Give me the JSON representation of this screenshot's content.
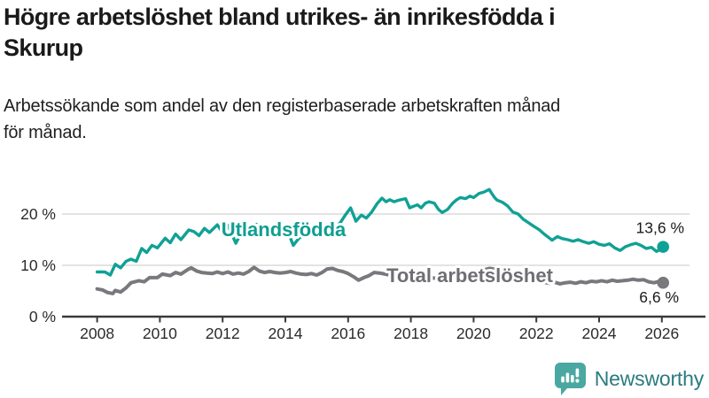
{
  "header": {
    "title_line1": "Högre arbetslöshet bland utrikes- än inrikesfödda i",
    "title_line2": "Skurup",
    "subtitle_line1": "Arbetssökande som andel av den registerbaserade arbetskraften månad",
    "subtitle_line2": "för månad."
  },
  "brand": {
    "name": "Newsworthy",
    "icon": "bar-chart-speech-bubble-icon",
    "icon_color": "#4ba7a2",
    "text_color": "#2b7b80"
  },
  "chart_data": {
    "type": "line",
    "title": "Högre arbetslöshet bland utrikes- än inrikesfödda i Skurup",
    "subtitle": "Arbetssökande som andel av den registerbaserade arbetskraften månad för månad.",
    "xlim": [
      2007.9,
      2026.4
    ],
    "ylim": [
      0,
      26
    ],
    "grid": "horizontal",
    "x_ticks": [
      2008,
      2010,
      2012,
      2014,
      2016,
      2018,
      2020,
      2022,
      2024,
      2026
    ],
    "y_ticks": [
      {
        "value": 0,
        "label": "0 %"
      },
      {
        "value": 10,
        "label": "10 %"
      },
      {
        "value": 20,
        "label": "20 %"
      }
    ],
    "colors": {
      "accent_teal": "#10a195",
      "neutral_gray": "#78787d",
      "gridline": "#dadada",
      "axis": "#3a3a3a"
    },
    "series": [
      {
        "id": "utlandsfodda",
        "name": "Utlandsfödda",
        "color": "#10a195",
        "label_color": "#0f9e92",
        "end_label": "13,6 %",
        "end_value": 13.6,
        "points": [
          [
            2008.0,
            8.7
          ],
          [
            2008.25,
            8.7
          ],
          [
            2008.42,
            8.1
          ],
          [
            2008.58,
            10.2
          ],
          [
            2008.75,
            9.5
          ],
          [
            2008.92,
            10.8
          ],
          [
            2009.08,
            11.2
          ],
          [
            2009.25,
            10.8
          ],
          [
            2009.42,
            13.3
          ],
          [
            2009.58,
            12.5
          ],
          [
            2009.75,
            13.9
          ],
          [
            2009.92,
            13.4
          ],
          [
            2010.08,
            14.6
          ],
          [
            2010.17,
            15.3
          ],
          [
            2010.33,
            14.4
          ],
          [
            2010.5,
            16.1
          ],
          [
            2010.67,
            15.0
          ],
          [
            2010.92,
            16.9
          ],
          [
            2011.08,
            16.6
          ],
          [
            2011.25,
            15.8
          ],
          [
            2011.42,
            17.2
          ],
          [
            2011.58,
            16.4
          ],
          [
            2011.83,
            17.9
          ],
          [
            2012.0,
            16.4
          ],
          [
            2012.17,
            17.8
          ],
          [
            2012.42,
            14.3
          ],
          [
            2012.58,
            16.2
          ],
          [
            2012.75,
            17.0
          ],
          [
            2012.92,
            17.5
          ],
          [
            2013.08,
            18.0
          ],
          [
            2013.25,
            17.3
          ],
          [
            2013.42,
            16.6
          ],
          [
            2013.58,
            16.1
          ],
          [
            2013.75,
            16.8
          ],
          [
            2013.92,
            16.3
          ],
          [
            2014.08,
            16.6
          ],
          [
            2014.25,
            13.9
          ],
          [
            2014.42,
            15.2
          ],
          [
            2014.58,
            15.9
          ],
          [
            2014.75,
            16.5
          ],
          [
            2014.92,
            16.2
          ],
          [
            2015.08,
            17.3
          ],
          [
            2015.25,
            16.3
          ],
          [
            2015.42,
            16.9
          ],
          [
            2015.58,
            17.4
          ],
          [
            2015.75,
            18.3
          ],
          [
            2015.92,
            19.9
          ],
          [
            2016.08,
            21.2
          ],
          [
            2016.25,
            18.6
          ],
          [
            2016.42,
            19.8
          ],
          [
            2016.58,
            19.2
          ],
          [
            2016.75,
            20.4
          ],
          [
            2016.92,
            22.0
          ],
          [
            2017.08,
            23.1
          ],
          [
            2017.21,
            22.4
          ],
          [
            2017.33,
            22.8
          ],
          [
            2017.46,
            22.4
          ],
          [
            2017.62,
            22.7
          ],
          [
            2017.83,
            23.0
          ],
          [
            2017.96,
            21.2
          ],
          [
            2018.08,
            21.5
          ],
          [
            2018.21,
            21.8
          ],
          [
            2018.33,
            21.2
          ],
          [
            2018.46,
            22.1
          ],
          [
            2018.58,
            22.4
          ],
          [
            2018.75,
            22.1
          ],
          [
            2018.88,
            20.9
          ],
          [
            2019.0,
            20.3
          ],
          [
            2019.17,
            20.9
          ],
          [
            2019.33,
            22.1
          ],
          [
            2019.46,
            22.8
          ],
          [
            2019.58,
            23.2
          ],
          [
            2019.75,
            23.0
          ],
          [
            2019.88,
            23.5
          ],
          [
            2020.0,
            23.2
          ],
          [
            2020.17,
            24.0
          ],
          [
            2020.33,
            24.3
          ],
          [
            2020.5,
            24.8
          ],
          [
            2020.58,
            24.0
          ],
          [
            2020.67,
            23.2
          ],
          [
            2020.75,
            22.7
          ],
          [
            2020.92,
            22.3
          ],
          [
            2021.08,
            21.6
          ],
          [
            2021.25,
            20.4
          ],
          [
            2021.42,
            20.0
          ],
          [
            2021.58,
            19.0
          ],
          [
            2021.75,
            18.3
          ],
          [
            2021.92,
            17.6
          ],
          [
            2022.08,
            17.0
          ],
          [
            2022.25,
            16.1
          ],
          [
            2022.42,
            15.3
          ],
          [
            2022.5,
            14.9
          ],
          [
            2022.67,
            15.6
          ],
          [
            2022.83,
            15.2
          ],
          [
            2023.0,
            15.0
          ],
          [
            2023.17,
            14.7
          ],
          [
            2023.33,
            15.0
          ],
          [
            2023.5,
            14.6
          ],
          [
            2023.67,
            14.3
          ],
          [
            2023.83,
            14.6
          ],
          [
            2024.0,
            14.1
          ],
          [
            2024.17,
            13.9
          ],
          [
            2024.33,
            14.2
          ],
          [
            2024.5,
            13.4
          ],
          [
            2024.67,
            12.9
          ],
          [
            2024.83,
            13.6
          ],
          [
            2025.0,
            14.0
          ],
          [
            2025.17,
            14.3
          ],
          [
            2025.33,
            13.9
          ],
          [
            2025.5,
            13.3
          ],
          [
            2025.67,
            13.5
          ],
          [
            2025.83,
            12.7
          ],
          [
            2025.92,
            13.0
          ],
          [
            2026.04,
            13.6
          ]
        ]
      },
      {
        "id": "total-arbetsloshet",
        "name": "Total arbetslöshet",
        "color": "#78787d",
        "label_color": "#6e6e73",
        "end_label": "6,6 %",
        "end_value": 6.6,
        "points": [
          [
            2008.0,
            5.4
          ],
          [
            2008.17,
            5.2
          ],
          [
            2008.33,
            4.7
          ],
          [
            2008.5,
            4.5
          ],
          [
            2008.58,
            5.1
          ],
          [
            2008.75,
            4.8
          ],
          [
            2008.92,
            5.6
          ],
          [
            2009.08,
            6.6
          ],
          [
            2009.33,
            7.0
          ],
          [
            2009.5,
            6.8
          ],
          [
            2009.67,
            7.6
          ],
          [
            2009.92,
            7.6
          ],
          [
            2010.08,
            8.3
          ],
          [
            2010.33,
            8.0
          ],
          [
            2010.5,
            8.6
          ],
          [
            2010.67,
            8.3
          ],
          [
            2010.92,
            9.3
          ],
          [
            2011.0,
            9.5
          ],
          [
            2011.17,
            8.9
          ],
          [
            2011.33,
            8.6
          ],
          [
            2011.5,
            8.5
          ],
          [
            2011.67,
            8.4
          ],
          [
            2011.83,
            8.7
          ],
          [
            2012.0,
            8.4
          ],
          [
            2012.17,
            8.7
          ],
          [
            2012.33,
            8.3
          ],
          [
            2012.5,
            8.5
          ],
          [
            2012.67,
            8.3
          ],
          [
            2012.83,
            8.8
          ],
          [
            2013.0,
            9.6
          ],
          [
            2013.17,
            8.9
          ],
          [
            2013.33,
            8.6
          ],
          [
            2013.5,
            8.8
          ],
          [
            2013.67,
            8.6
          ],
          [
            2013.83,
            8.5
          ],
          [
            2014.0,
            8.6
          ],
          [
            2014.17,
            8.8
          ],
          [
            2014.33,
            8.5
          ],
          [
            2014.5,
            8.3
          ],
          [
            2014.67,
            8.2
          ],
          [
            2014.83,
            8.4
          ],
          [
            2015.0,
            8.1
          ],
          [
            2015.17,
            8.6
          ],
          [
            2015.33,
            9.3
          ],
          [
            2015.5,
            9.4
          ],
          [
            2015.67,
            9.0
          ],
          [
            2015.83,
            8.8
          ],
          [
            2016.0,
            8.4
          ],
          [
            2016.17,
            7.8
          ],
          [
            2016.33,
            7.1
          ],
          [
            2016.5,
            7.6
          ],
          [
            2016.67,
            8.0
          ],
          [
            2016.83,
            8.6
          ],
          [
            2017.0,
            8.5
          ],
          [
            2017.25,
            8.2
          ],
          [
            2017.5,
            8.0
          ],
          [
            2017.75,
            7.7
          ],
          [
            2018.0,
            7.6
          ],
          [
            2018.25,
            7.9
          ],
          [
            2018.5,
            7.7
          ],
          [
            2018.75,
            7.5
          ],
          [
            2019.0,
            7.4
          ],
          [
            2019.25,
            7.6
          ],
          [
            2019.5,
            7.7
          ],
          [
            2019.75,
            7.9
          ],
          [
            2020.0,
            8.2
          ],
          [
            2020.25,
            9.0
          ],
          [
            2020.5,
            9.4
          ],
          [
            2020.75,
            9.2
          ],
          [
            2021.0,
            8.8
          ],
          [
            2021.25,
            8.3
          ],
          [
            2021.5,
            7.9
          ],
          [
            2021.75,
            7.5
          ],
          [
            2021.92,
            7.1
          ],
          [
            2022.08,
            6.9
          ],
          [
            2022.25,
            6.7
          ],
          [
            2022.42,
            6.5
          ],
          [
            2022.58,
            6.7
          ],
          [
            2022.75,
            6.4
          ],
          [
            2022.92,
            6.6
          ],
          [
            2023.08,
            6.7
          ],
          [
            2023.25,
            6.5
          ],
          [
            2023.42,
            6.8
          ],
          [
            2023.58,
            6.6
          ],
          [
            2023.75,
            6.9
          ],
          [
            2023.92,
            6.8
          ],
          [
            2024.08,
            7.0
          ],
          [
            2024.25,
            6.8
          ],
          [
            2024.42,
            7.1
          ],
          [
            2024.58,
            6.9
          ],
          [
            2024.75,
            7.0
          ],
          [
            2024.92,
            7.1
          ],
          [
            2025.08,
            7.3
          ],
          [
            2025.25,
            7.1
          ],
          [
            2025.42,
            7.2
          ],
          [
            2025.58,
            6.8
          ],
          [
            2025.75,
            6.6
          ],
          [
            2025.92,
            6.9
          ],
          [
            2026.04,
            6.6
          ]
        ]
      }
    ]
  }
}
